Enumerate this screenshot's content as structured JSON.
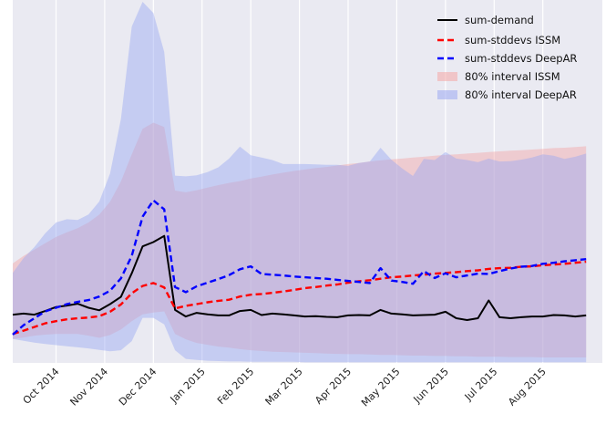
{
  "chart_data": {
    "type": "line",
    "title": "",
    "xlabel": "",
    "ylabel": "",
    "x_tick_labels": [
      "Oct 2014",
      "Nov 2014",
      "Dec 2014",
      "Jan 2015",
      "Feb 2015",
      "Mar 2015",
      "Apr 2015",
      "May 2015",
      "Jun 2015",
      "Jul 2015",
      "Aug 2015"
    ],
    "x_tick_pos": [
      4,
      8.5,
      13,
      17.5,
      22,
      26.5,
      31,
      35.5,
      40,
      44.5,
      49
    ],
    "xlim": [
      0,
      54.5
    ],
    "ylim": [
      0,
      100
    ],
    "grid": true,
    "legend_position": "top-right",
    "series": [
      {
        "name": "sum-demand",
        "kind": "line",
        "color": "#000000",
        "dash": "solid",
        "values": [
          13.3,
          13.6,
          13.3,
          14.3,
          15.4,
          15.8,
          16.3,
          15.2,
          14.5,
          16.2,
          18.2,
          24.7,
          32.1,
          33.3,
          35.0,
          14.6,
          12.8,
          13.8,
          13.4,
          13.1,
          13.1,
          14.3,
          14.6,
          13.2,
          13.6,
          13.4,
          13.1,
          12.8,
          12.9,
          12.7,
          12.6,
          13.1,
          13.2,
          13.1,
          14.6,
          13.6,
          13.4,
          13.1,
          13.2,
          13.3,
          14.1,
          12.3,
          11.8,
          12.3,
          17.2,
          12.6,
          12.3,
          12.6,
          12.8,
          12.8,
          13.2,
          13.1,
          12.8,
          13.1
        ]
      },
      {
        "name": "sum-stddevs ISSM",
        "kind": "line",
        "color": "#ff0000",
        "dash": "dashed",
        "values": [
          8.0,
          8.9,
          9.9,
          10.9,
          11.5,
          12.0,
          12.3,
          12.5,
          12.9,
          14.1,
          16.1,
          19.2,
          21.2,
          22.0,
          20.8,
          15.0,
          15.7,
          16.2,
          16.7,
          17.1,
          17.4,
          18.3,
          18.8,
          19.0,
          19.3,
          19.7,
          20.1,
          20.6,
          20.9,
          21.3,
          21.6,
          22.1,
          22.5,
          22.8,
          23.2,
          23.6,
          23.8,
          24.1,
          24.3,
          24.6,
          24.8,
          25.0,
          25.3,
          25.5,
          25.9,
          26.1,
          26.2,
          26.5,
          26.6,
          26.9,
          27.1,
          27.3,
          27.6,
          27.9
        ]
      },
      {
        "name": "sum-stddevs DeepAR",
        "kind": "line",
        "color": "#0000ff",
        "dash": "dashed",
        "values": [
          7.8,
          10.4,
          12.3,
          14.2,
          15.2,
          16.2,
          16.8,
          17.3,
          18.3,
          19.9,
          23.3,
          29.5,
          40.3,
          44.8,
          42.3,
          20.9,
          19.5,
          21.1,
          22.1,
          23.1,
          24.2,
          25.8,
          26.6,
          24.5,
          24.3,
          24.1,
          23.8,
          23.6,
          23.4,
          23.2,
          22.9,
          22.6,
          22.3,
          22.0,
          26.1,
          22.7,
          22.3,
          21.8,
          25.3,
          23.4,
          24.7,
          23.6,
          24.1,
          24.6,
          24.5,
          25.3,
          26.0,
          26.5,
          26.7,
          27.3,
          27.6,
          28.0,
          28.3,
          28.6
        ]
      },
      {
        "name": "80% interval ISSM",
        "kind": "band",
        "color": "#f4a6a6",
        "opacity": 0.45,
        "lower": [
          6.6,
          7.0,
          7.5,
          7.8,
          8.0,
          8.0,
          8.0,
          7.5,
          6.9,
          7.7,
          9.2,
          11.5,
          13.4,
          13.9,
          14.2,
          8.0,
          6.5,
          5.5,
          5.0,
          4.5,
          4.2,
          3.8,
          3.5,
          3.3,
          3.1,
          3.0,
          2.9,
          2.8,
          2.7,
          2.6,
          2.5,
          2.4,
          2.4,
          2.3,
          2.2,
          2.2,
          2.1,
          2.0,
          2.0,
          1.9,
          1.9,
          1.8,
          1.8,
          1.7,
          1.7,
          1.7,
          1.6,
          1.6,
          1.6,
          1.5,
          1.5,
          1.5,
          1.5,
          1.5
        ],
        "upper": [
          27.4,
          29.5,
          31.2,
          33.0,
          34.7,
          36.0,
          37.1,
          38.7,
          40.9,
          44.4,
          50.0,
          57.5,
          64.5,
          66.2,
          65.0,
          47.5,
          47.0,
          47.6,
          48.3,
          49.0,
          49.6,
          50.1,
          50.8,
          51.3,
          51.9,
          52.4,
          52.9,
          53.3,
          53.7,
          54.0,
          54.4,
          54.8,
          55.1,
          55.5,
          55.8,
          56.1,
          56.3,
          56.6,
          56.8,
          57.1,
          57.3,
          57.5,
          57.7,
          57.9,
          58.1,
          58.3,
          58.5,
          58.6,
          58.8,
          59.0,
          59.2,
          59.3,
          59.5,
          59.7
        ]
      },
      {
        "name": "80% interval DeepAR",
        "kind": "band",
        "color": "#9aa8f2",
        "opacity": 0.45,
        "lower": [
          6.6,
          6.1,
          5.6,
          5.2,
          4.9,
          4.6,
          4.3,
          4.0,
          3.6,
          3.2,
          3.5,
          6.0,
          12.4,
          12.4,
          10.6,
          3.5,
          1.1,
          0.8,
          0.6,
          0.5,
          0.4,
          0.4,
          0.3,
          0.3,
          0.3,
          0.3,
          0.3,
          0.2,
          0.2,
          0.2,
          0.2,
          0.2,
          0.2,
          0.2,
          0.2,
          0.2,
          0.2,
          0.2,
          0.2,
          0.2,
          0.2,
          0.2,
          0.2,
          0.2,
          0.2,
          0.2,
          0.2,
          0.2,
          0.2,
          0.2,
          0.2,
          0.2,
          0.2,
          0.2
        ],
        "upper": [
          24.8,
          28.9,
          31.9,
          35.7,
          38.7,
          39.6,
          39.4,
          40.9,
          44.5,
          52.2,
          67.2,
          92.7,
          99.5,
          96.4,
          85.7,
          51.6,
          51.4,
          51.7,
          52.6,
          53.9,
          56.3,
          59.6,
          57.2,
          56.6,
          55.9,
          54.8,
          54.8,
          54.8,
          54.7,
          54.6,
          54.6,
          54.3,
          55.1,
          55.5,
          59.3,
          56.0,
          53.6,
          51.5,
          56.2,
          55.9,
          58.1,
          56.3,
          55.9,
          55.3,
          56.3,
          55.5,
          55.6,
          56.0,
          56.6,
          57.5,
          57.1,
          56.2,
          56.8,
          57.7
        ]
      }
    ]
  }
}
